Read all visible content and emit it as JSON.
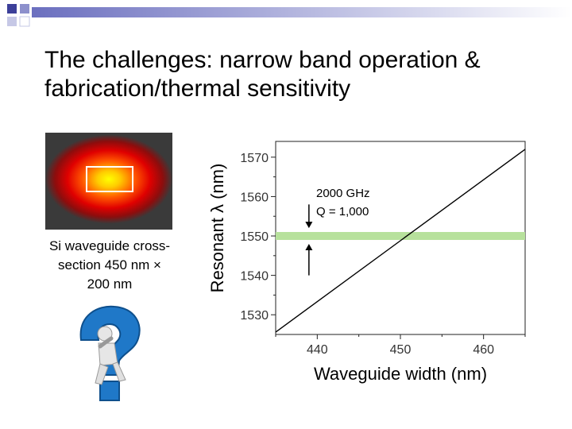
{
  "slide": {
    "title_lines": [
      "The challenges: narrow band operation &",
      "fabrication/thermal sensitivity"
    ],
    "caption_lines": [
      "Si waveguide cross-",
      "section 450 nm ×",
      "200 nm"
    ],
    "icons": {
      "mode_image": "waveguide-mode-image",
      "person": "person-question-mark-icon"
    }
  },
  "chart_data": {
    "type": "line",
    "xlabel": "Waveguide width (nm)",
    "ylabel": "Resonant λ (nm)",
    "xlim": [
      435,
      465
    ],
    "ylim": [
      1525,
      1574
    ],
    "xticks": [
      440,
      450,
      460
    ],
    "yticks": [
      1530,
      1540,
      1550,
      1560,
      1570
    ],
    "series": [
      {
        "x": [
          435,
          465
        ],
        "y": [
          1525.6,
          1572.0
        ],
        "color": "#000000"
      }
    ],
    "band": {
      "y": 1550,
      "color": "#b7e19c"
    },
    "annotations": {
      "line1": "2000 GHz",
      "line2": "Q = 1,000",
      "arrow_x": 439,
      "arrow_upper_y": [
        1558,
        1552
      ],
      "arrow_lower_y": [
        1540,
        1548
      ]
    }
  }
}
